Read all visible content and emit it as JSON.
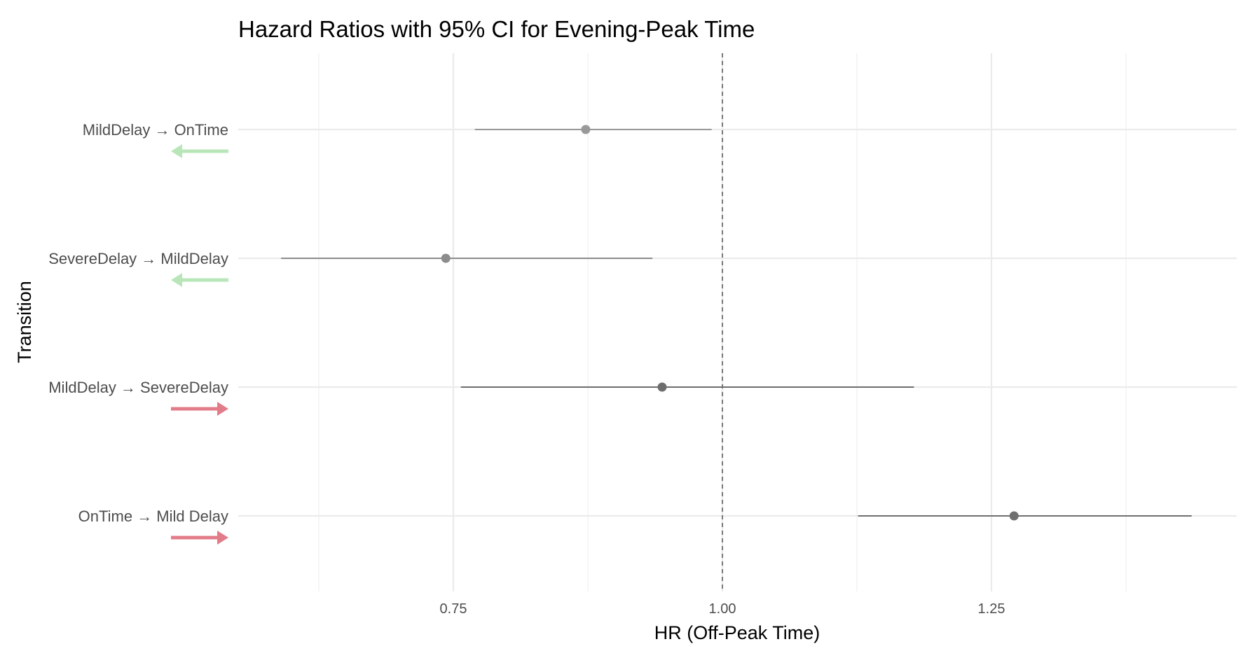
{
  "chart_data": {
    "type": "forest",
    "title": "Hazard Ratios with 95% CI for Evening-Peak Time",
    "xlabel": "HR (Off-Peak Time)",
    "ylabel": "Transition",
    "xlim": [
      0.5,
      1.48
    ],
    "x_ticks": [
      0.75,
      1.0,
      1.25
    ],
    "x_tick_labels": [
      "0.75",
      "1.00",
      "1.25"
    ],
    "reference_line": 1.0,
    "grid": true,
    "rows": [
      {
        "label": "MildDelay → OnTime",
        "hr": 0.873,
        "lower": 0.77,
        "upper": 0.99,
        "direction": "backward",
        "arrow_color": "#b9e6b9",
        "point_color": "#999999"
      },
      {
        "label": "SevereDelay → MildDelay",
        "hr": 0.743,
        "lower": 0.59,
        "upper": 0.935,
        "direction": "backward",
        "arrow_color": "#b9e6b9",
        "point_color": "#8c8c8c"
      },
      {
        "label": "MildDelay → SevereDelay",
        "hr": 0.944,
        "lower": 0.757,
        "upper": 1.178,
        "direction": "forward",
        "arrow_color": "#e37c89",
        "point_color": "#6e6e6e"
      },
      {
        "label": "OnTime → Mild Delay",
        "hr": 1.271,
        "lower": 1.126,
        "upper": 1.436,
        "direction": "forward",
        "arrow_color": "#e37c89",
        "point_color": "#707070"
      }
    ]
  }
}
